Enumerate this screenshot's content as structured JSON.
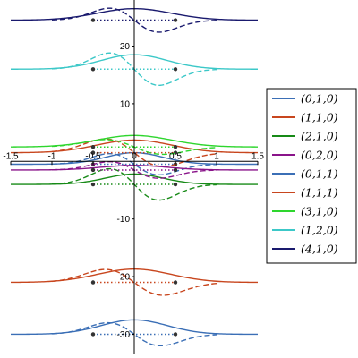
{
  "chart_data": {
    "type": "line",
    "title": "",
    "xlabel": "",
    "ylabel": "",
    "xlim": [
      -1.5,
      1.5
    ],
    "ylim": [
      -33.5,
      28
    ],
    "grid": false,
    "legend_position": "right",
    "x_ticks": [
      -1.5,
      -1,
      -0.5,
      0,
      0.5,
      1,
      1.5
    ],
    "x_tick_labels": [
      "-1.5",
      "-1",
      "-0.5",
      "0",
      "0.5",
      "1",
      "1.5"
    ],
    "y_ticks": [
      20,
      10,
      -10,
      -20,
      -30
    ],
    "y_tick_labels": [
      "20",
      "10",
      "-10",
      "-20",
      "-30"
    ],
    "series": [
      {
        "name": "(0,1,0)",
        "color": "#3b6fb6",
        "baseline": -0.5,
        "marker_ticks": false
      },
      {
        "name": "(1,1,0)",
        "color": "#c8461e",
        "baseline": 1.5,
        "marker_ticks": true
      },
      {
        "name": "(2,1,0)",
        "color": "#178a17",
        "baseline": -4.0,
        "marker_ticks": false
      },
      {
        "name": "(0,2,0)",
        "color": "#8a148a",
        "baseline": -1.5,
        "marker_ticks": true
      },
      {
        "name": "(0,1,1)",
        "color": "#3b6fb6",
        "baseline": -30.0,
        "marker_ticks": false
      },
      {
        "name": "(1,1,1)",
        "color": "#c8461e",
        "baseline": -21.0,
        "marker_ticks": false
      },
      {
        "name": "(3,1,0)",
        "color": "#2ed62e",
        "baseline": 2.5,
        "marker_ticks": false
      },
      {
        "name": "(1,2,0)",
        "color": "#3cc8c8",
        "baseline": 16.0,
        "marker_ticks": false
      },
      {
        "name": "(4,1,0)",
        "color": "#1a1a6e",
        "baseline": 24.5,
        "marker_ticks": false
      }
    ]
  }
}
